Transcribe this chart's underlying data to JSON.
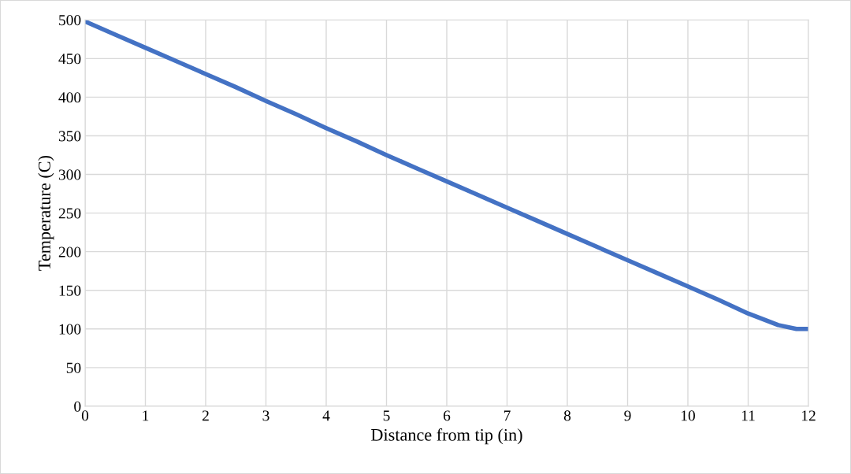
{
  "chart_data": {
    "type": "line",
    "xlabel": "Distance from tip (in)",
    "ylabel": "Temperature (C)",
    "x": [
      0,
      0.5,
      1,
      1.5,
      2,
      2.5,
      3,
      3.5,
      4,
      4.5,
      5,
      5.5,
      6,
      6.5,
      7,
      7.5,
      8,
      8.5,
      9,
      9.5,
      10,
      10.5,
      11,
      11.5,
      11.8,
      12
    ],
    "series": [
      {
        "color": "#4472c4",
        "values": [
          498,
          481,
          464,
          447,
          430,
          413,
          395,
          378,
          360,
          343,
          325,
          308,
          291,
          274,
          257,
          240,
          223,
          206,
          189,
          172,
          155,
          138,
          120,
          105,
          100,
          100
        ]
      }
    ],
    "xlim": [
      0,
      12
    ],
    "xticks": [
      0,
      1,
      2,
      3,
      4,
      5,
      6,
      7,
      8,
      9,
      10,
      11,
      12
    ],
    "ylim": [
      0,
      500
    ],
    "yticks": [
      0,
      50,
      100,
      150,
      200,
      250,
      300,
      350,
      400,
      450,
      500
    ],
    "grid": true,
    "marker": "none",
    "line_style": "solid",
    "legend": false
  }
}
